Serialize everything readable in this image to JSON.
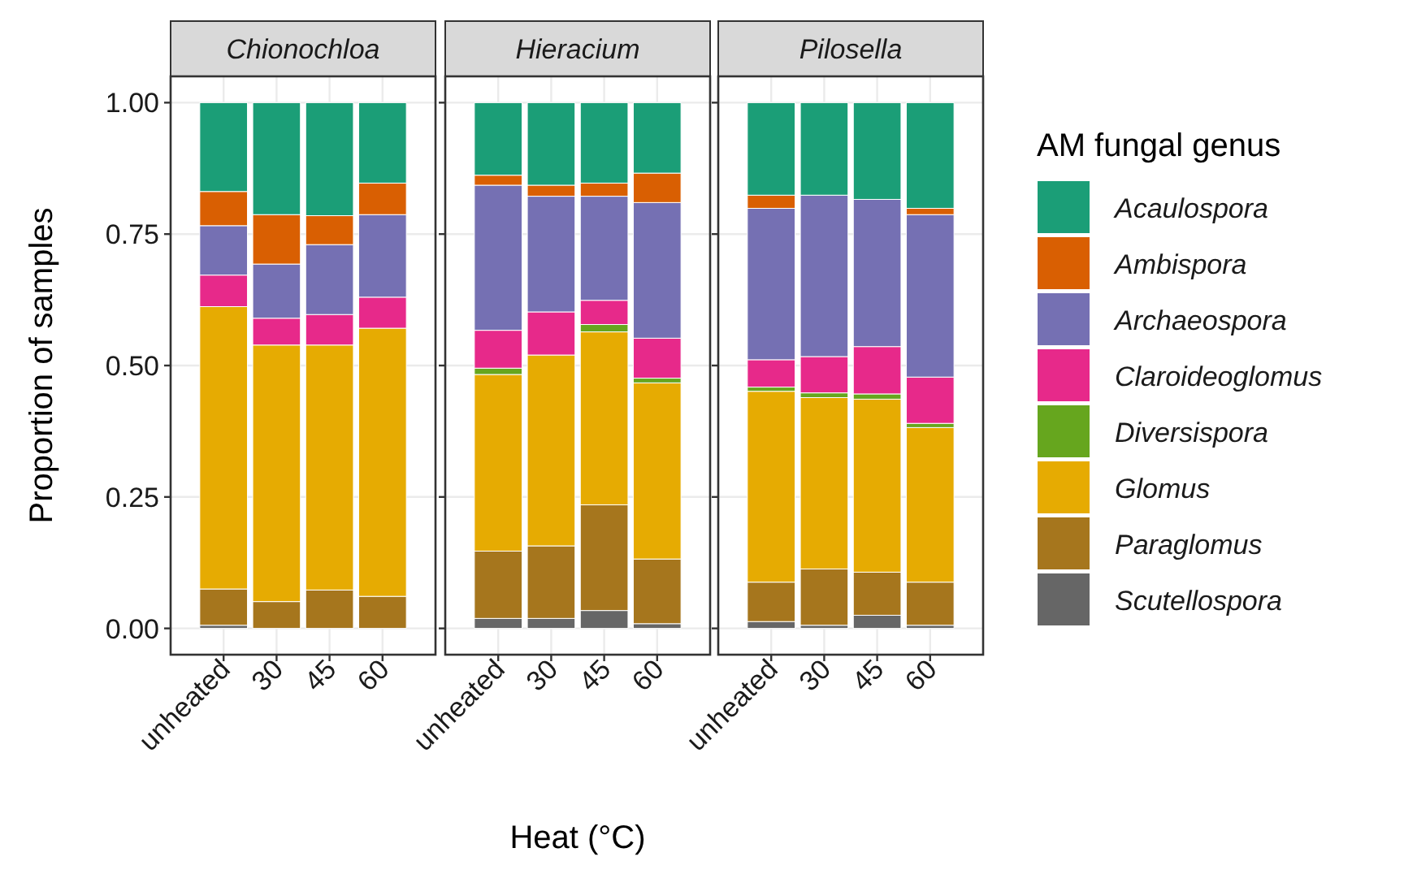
{
  "chart_data": [
    {
      "type": "bar",
      "stacked": true,
      "title": "Chionochloa",
      "ylabel": "Proportion of samples",
      "categories": [
        "unheated",
        "30",
        "45",
        "60"
      ],
      "ylim": [
        -0.05,
        1.05
      ],
      "yticks": [
        {
          "value": 0,
          "label": "0.00"
        },
        {
          "value": 0.25,
          "label": "0.25"
        },
        {
          "value": 0.5,
          "label": "0.50"
        },
        {
          "value": 0.75,
          "label": "0.75"
        },
        {
          "value": 1,
          "label": "1.00"
        }
      ],
      "grid": true,
      "series": [
        {
          "color": "#666666",
          "values": [
            0.006,
            0,
            0,
            0
          ]
        },
        {
          "color": "#a6761d",
          "values": [
            0.069,
            0.051,
            0.073,
            0.061
          ]
        },
        {
          "color": "#66a61e",
          "values": [
            0,
            0,
            0,
            0
          ]
        },
        {
          "color": "#e6ab02",
          "values": [
            0.537,
            0.488,
            0.466,
            0.51
          ]
        },
        {
          "color": "#e7298a",
          "values": [
            0.06,
            0.051,
            0.058,
            0.059
          ]
        },
        {
          "color": "#7570b3",
          "values": [
            0.094,
            0.103,
            0.133,
            0.157
          ]
        },
        {
          "color": "#d95f02",
          "values": [
            0.065,
            0.094,
            0.055,
            0.06
          ]
        },
        {
          "color": "#1b9e77",
          "values": [
            0.169,
            0.213,
            0.215,
            0.153
          ]
        }
      ]
    },
    {
      "type": "bar",
      "stacked": true,
      "title": "Hieracium",
      "xlabel": "Heat (°C)",
      "categories": [
        "unheated",
        "30",
        "45",
        "60"
      ],
      "ylim": [
        -0.05,
        1.05
      ],
      "yticks": [
        {
          "value": 0,
          "label": null
        },
        {
          "value": 0.25,
          "label": null
        },
        {
          "value": 0.5,
          "label": null
        },
        {
          "value": 0.75,
          "label": null
        },
        {
          "value": 1,
          "label": null
        }
      ],
      "grid": true,
      "tick_labels": "x",
      "series": [
        {
          "color": "#666666",
          "values": [
            0.019,
            0.019,
            0.034,
            0.009
          ]
        },
        {
          "color": "#a6761d",
          "values": [
            0.128,
            0.138,
            0.201,
            0.123
          ]
        },
        {
          "color": "#e6ab02",
          "values": [
            0.336,
            0.363,
            0.329,
            0.335
          ]
        },
        {
          "color": "#66a61e",
          "values": [
            0.012,
            0,
            0.014,
            0.009
          ]
        },
        {
          "color": "#e7298a",
          "values": [
            0.072,
            0.082,
            0.046,
            0.076
          ]
        },
        {
          "color": "#7570b3",
          "values": [
            0.276,
            0.22,
            0.198,
            0.258
          ]
        },
        {
          "color": "#d95f02",
          "values": [
            0.019,
            0.021,
            0.025,
            0.056
          ]
        },
        {
          "color": "#1b9e77",
          "values": [
            0.138,
            0.157,
            0.153,
            0.134
          ]
        }
      ]
    },
    {
      "type": "bar",
      "stacked": true,
      "title": "Pilosella",
      "legend_title": "AM fungal genus",
      "legend": "right",
      "categories": [
        "unheated",
        "30",
        "45",
        "60"
      ],
      "ylim": [
        -0.05,
        1.05
      ],
      "yticks": [
        {
          "value": 0,
          "label": null
        },
        {
          "value": 0.25,
          "label": null
        },
        {
          "value": 0.5,
          "label": null
        },
        {
          "value": 0.75,
          "label": null
        },
        {
          "value": 1,
          "label": null
        }
      ],
      "grid": true,
      "tick_labels": "x",
      "series": [
        {
          "name": "Scutellospora",
          "color": "#666666",
          "values": [
            0.013,
            0.006,
            0.025,
            0.006
          ]
        },
        {
          "name": "Paraglomus",
          "color": "#a6761d",
          "values": [
            0.075,
            0.107,
            0.082,
            0.082
          ]
        },
        {
          "name": "Glomus",
          "color": "#e6ab02",
          "values": [
            0.363,
            0.326,
            0.329,
            0.294
          ]
        },
        {
          "name": "Diversispora",
          "color": "#66a61e",
          "values": [
            0.008,
            0.009,
            0.01,
            0.008
          ]
        },
        {
          "name": "Claroideoglomus",
          "color": "#e7298a",
          "values": [
            0.052,
            0.069,
            0.09,
            0.088
          ]
        },
        {
          "name": "Archaeospora",
          "color": "#7570b3",
          "values": [
            0.288,
            0.307,
            0.28,
            0.309
          ]
        },
        {
          "name": "Ambispora",
          "color": "#d95f02",
          "values": [
            0.025,
            0,
            0,
            0.012
          ]
        },
        {
          "name": "Acaulospora",
          "color": "#1b9e77",
          "values": [
            0.176,
            0.176,
            0.184,
            0.201
          ]
        }
      ]
    }
  ]
}
